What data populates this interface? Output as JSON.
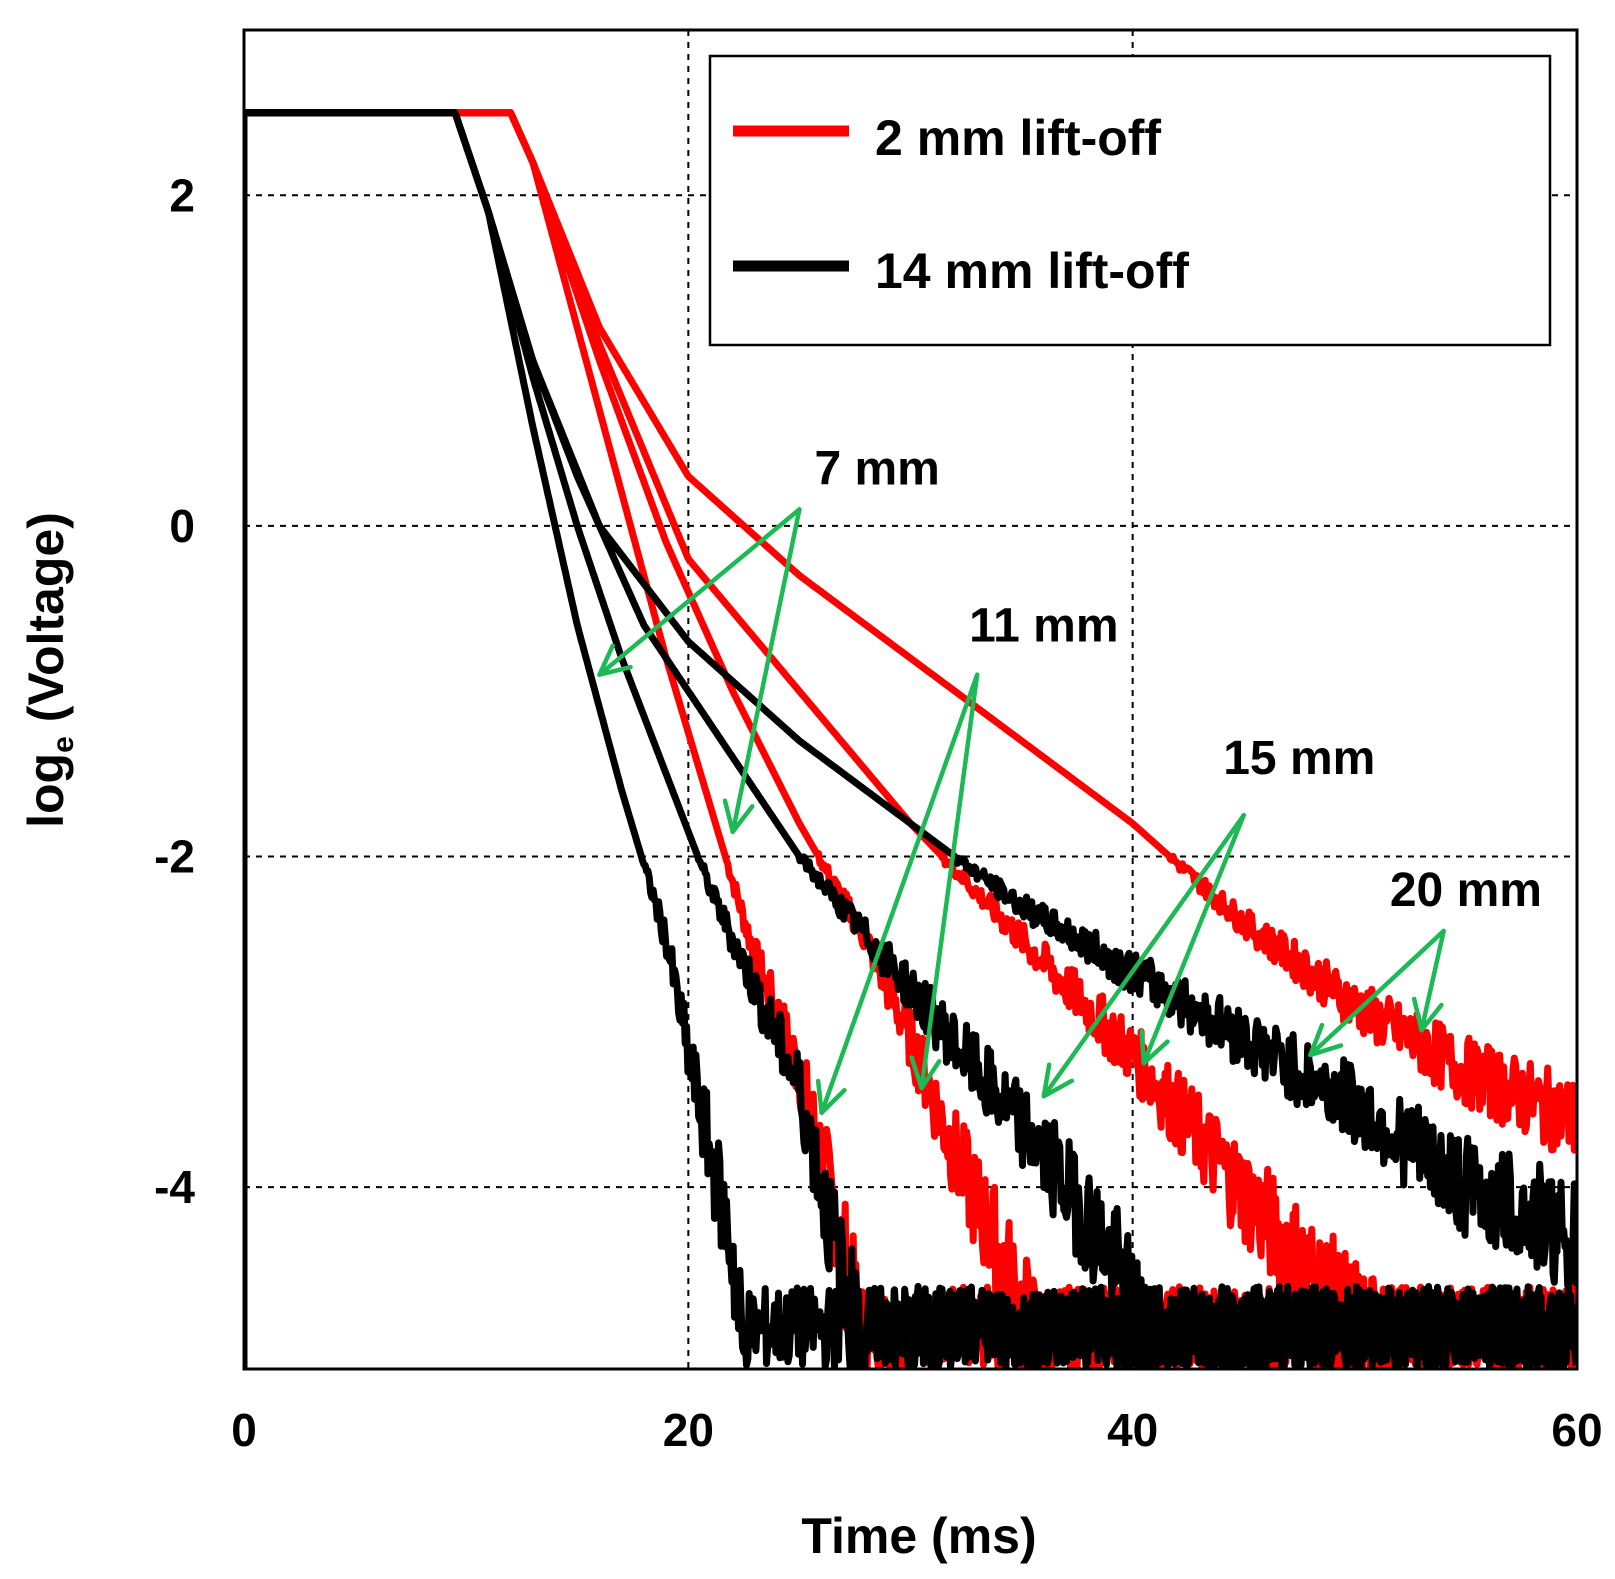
{
  "chart_data": {
    "type": "line",
    "xlabel": "Time (ms)",
    "ylabel_main": "log",
    "ylabel_sub": "e",
    "ylabel_rest": " (Voltage)",
    "xlim": [
      0,
      60
    ],
    "ylim": [
      -5.1,
      3.0
    ],
    "xticks": [
      0,
      20,
      40,
      60
    ],
    "yticks": [
      2,
      0,
      -2,
      -4
    ],
    "xtick_labels": [
      "0",
      "20",
      "40",
      "60"
    ],
    "ytick_labels": [
      "2",
      "0",
      "-2",
      "-4"
    ],
    "grid": true,
    "legend_position": "top-right",
    "colors": {
      "red": "#ff0000",
      "black": "#000000",
      "annotation": "#1db954"
    },
    "legend": [
      {
        "label": "2 mm lift-off",
        "color": "#ff0000"
      },
      {
        "label": "14 mm lift-off",
        "color": "#000000"
      }
    ],
    "series": [
      {
        "group": "2 mm lift-off",
        "color": "#ff0000",
        "gap": "7 mm",
        "points": [
          [
            0,
            -5.1
          ],
          [
            0,
            2.5
          ],
          [
            12,
            2.5
          ],
          [
            13,
            2.2
          ],
          [
            15,
            1.2
          ],
          [
            17,
            0.2
          ],
          [
            19,
            -0.8
          ],
          [
            21,
            -1.7
          ],
          [
            23,
            -2.6
          ],
          [
            25,
            -3.3
          ],
          [
            26,
            -3.8
          ],
          [
            27,
            -4.4
          ],
          [
            28,
            -5.1
          ]
        ]
      },
      {
        "group": "2 mm lift-off",
        "color": "#ff0000",
        "gap": "11 mm",
        "points": [
          [
            0,
            -5.1
          ],
          [
            0,
            2.5
          ],
          [
            12,
            2.5
          ],
          [
            13,
            2.2
          ],
          [
            16,
            1.0
          ],
          [
            19,
            -0.1
          ],
          [
            22,
            -1.0
          ],
          [
            25,
            -1.8
          ],
          [
            28,
            -2.5
          ],
          [
            30,
            -3.1
          ],
          [
            32,
            -3.8
          ],
          [
            34,
            -4.4
          ],
          [
            36,
            -5.1
          ]
        ]
      },
      {
        "group": "2 mm lift-off",
        "color": "#ff0000",
        "gap": "15 mm",
        "points": [
          [
            0,
            -5.1
          ],
          [
            0,
            2.5
          ],
          [
            12,
            2.5
          ],
          [
            13,
            2.2
          ],
          [
            16,
            1.1
          ],
          [
            20,
            -0.2
          ],
          [
            25,
            -1.0
          ],
          [
            30,
            -1.8
          ],
          [
            35,
            -2.5
          ],
          [
            40,
            -3.2
          ],
          [
            43,
            -3.7
          ],
          [
            46,
            -4.2
          ],
          [
            49,
            -4.7
          ],
          [
            52,
            -5.1
          ]
        ]
      },
      {
        "group": "2 mm lift-off",
        "color": "#ff0000",
        "gap": "20 mm",
        "points": [
          [
            0,
            -5.1
          ],
          [
            0,
            2.5
          ],
          [
            12,
            2.5
          ],
          [
            13,
            2.2
          ],
          [
            16,
            1.2
          ],
          [
            20,
            0.3
          ],
          [
            25,
            -0.3
          ],
          [
            30,
            -0.8
          ],
          [
            35,
            -1.3
          ],
          [
            40,
            -1.8
          ],
          [
            45,
            -2.4
          ],
          [
            50,
            -2.9
          ],
          [
            55,
            -3.3
          ],
          [
            60,
            -3.6
          ]
        ]
      },
      {
        "group": "14 mm lift-off",
        "color": "#000000",
        "gap": "7 mm",
        "points": [
          [
            0,
            -5.1
          ],
          [
            0,
            2.5
          ],
          [
            9.5,
            2.5
          ],
          [
            11,
            1.9
          ],
          [
            13,
            0.6
          ],
          [
            15,
            -0.6
          ],
          [
            17,
            -1.6
          ],
          [
            19,
            -2.5
          ],
          [
            20,
            -3.2
          ],
          [
            21,
            -3.8
          ],
          [
            22,
            -4.4
          ],
          [
            22.5,
            -5.1
          ]
        ]
      },
      {
        "group": "14 mm lift-off",
        "color": "#000000",
        "gap": "11 mm",
        "points": [
          [
            0,
            -5.1
          ],
          [
            0,
            2.5
          ],
          [
            9.5,
            2.5
          ],
          [
            11,
            1.9
          ],
          [
            13,
            0.9
          ],
          [
            15,
            0.0
          ],
          [
            17,
            -0.8
          ],
          [
            19,
            -1.5
          ],
          [
            21,
            -2.2
          ],
          [
            23,
            -2.8
          ],
          [
            25,
            -3.4
          ],
          [
            26,
            -4.0
          ],
          [
            27,
            -4.6
          ],
          [
            28,
            -5.1
          ]
        ]
      },
      {
        "group": "14 mm lift-off",
        "color": "#000000",
        "gap": "15 mm",
        "points": [
          [
            0,
            -5.1
          ],
          [
            0,
            2.5
          ],
          [
            9.5,
            2.5
          ],
          [
            11,
            1.9
          ],
          [
            13,
            1.0
          ],
          [
            15,
            0.3
          ],
          [
            18,
            -0.6
          ],
          [
            21,
            -1.2
          ],
          [
            25,
            -2.0
          ],
          [
            30,
            -2.8
          ],
          [
            33,
            -3.3
          ],
          [
            36,
            -3.8
          ],
          [
            39,
            -4.4
          ],
          [
            41,
            -5.1
          ]
        ]
      },
      {
        "group": "14 mm lift-off",
        "color": "#000000",
        "gap": "20 mm",
        "points": [
          [
            0,
            -5.1
          ],
          [
            0,
            2.5
          ],
          [
            9.5,
            2.5
          ],
          [
            11,
            1.9
          ],
          [
            13,
            1.0
          ],
          [
            16,
            0.0
          ],
          [
            20,
            -0.7
          ],
          [
            25,
            -1.3
          ],
          [
            30,
            -1.8
          ],
          [
            35,
            -2.3
          ],
          [
            40,
            -2.7
          ],
          [
            45,
            -3.1
          ],
          [
            50,
            -3.5
          ],
          [
            55,
            -4.0
          ],
          [
            60,
            -4.3
          ]
        ]
      }
    ],
    "annotations": [
      {
        "text": "7 mm",
        "label_at": [
          28.5,
          0.25
        ],
        "origin": [
          25,
          0.1
        ],
        "targets": [
          [
            16,
            -0.9
          ],
          [
            22,
            -1.85
          ]
        ]
      },
      {
        "text": "11 mm",
        "label_at": [
          36,
          -0.7
        ],
        "origin": [
          33,
          -0.9
        ],
        "targets": [
          [
            26,
            -3.55
          ],
          [
            30.5,
            -3.4
          ]
        ]
      },
      {
        "text": "15 mm",
        "label_at": [
          47.5,
          -1.5
        ],
        "origin": [
          45,
          -1.75
        ],
        "targets": [
          [
            36,
            -3.45
          ],
          [
            40.5,
            -3.25
          ]
        ]
      },
      {
        "text": "20 mm",
        "label_at": [
          55,
          -2.3
        ],
        "origin": [
          54,
          -2.45
        ],
        "targets": [
          [
            48,
            -3.2
          ],
          [
            53,
            -3.05
          ]
        ]
      }
    ]
  }
}
